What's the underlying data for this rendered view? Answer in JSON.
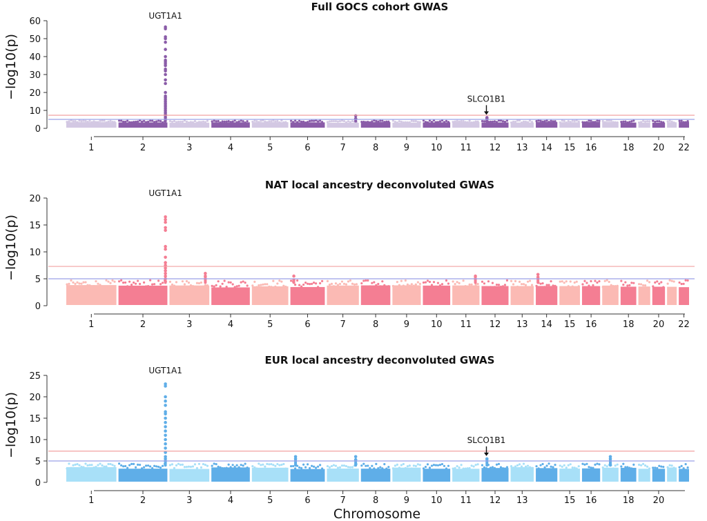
{
  "figure": {
    "xlabel": "Chromosome"
  },
  "chart_data": [
    {
      "type": "scatter",
      "subtype": "manhattan",
      "title": "Full GOCS cohort GWAS",
      "ylabel": "−log10(p)",
      "ylim": [
        0,
        60
      ],
      "yticks": [
        0,
        10,
        20,
        30,
        40,
        50,
        60
      ],
      "thresholds": {
        "suggestive": 5,
        "genome_wide": 7.3
      },
      "colors": {
        "dark": "#8a5ca8",
        "light": "#d3c8e3"
      },
      "chromosome_labels": [
        "1",
        "2",
        "3",
        "4",
        "5",
        "6",
        "7",
        "8",
        "9",
        "10",
        "11",
        "12",
        "13",
        "14",
        "15",
        "16",
        "18",
        "20",
        "22"
      ],
      "baseline_max": 4,
      "peaks": [
        {
          "chromosome": "2",
          "position": 0.96,
          "max": 56.5,
          "values": [
            56.5,
            55.5,
            51,
            50,
            48,
            44,
            40,
            38,
            37,
            36,
            35,
            33,
            32,
            30,
            27,
            25,
            20,
            18,
            17,
            16,
            15,
            14,
            13,
            12,
            11,
            10,
            9,
            8,
            7,
            6,
            5
          ]
        },
        {
          "chromosome": "12",
          "position": 0.2,
          "max": 6,
          "values": [
            6,
            5.5,
            5
          ]
        },
        {
          "chromosome": "7",
          "position": 0.9,
          "max": 7,
          "values": [
            7,
            5.5
          ]
        }
      ],
      "annotations": [
        {
          "label": "UGT1A1",
          "chromosome": "2",
          "position": 0.96,
          "arrow": false
        },
        {
          "label": "SLCO1B1",
          "chromosome": "12",
          "position": 0.18,
          "arrow": true
        }
      ]
    },
    {
      "type": "scatter",
      "subtype": "manhattan",
      "title": "NAT local ancestry deconvoluted GWAS",
      "ylabel": "−log10(p)",
      "ylim": [
        0,
        20
      ],
      "yticks": [
        0,
        5,
        10,
        15,
        20
      ],
      "thresholds": {
        "suggestive": 5,
        "genome_wide": 7.3
      },
      "colors": {
        "dark": "#f47e93",
        "light": "#fbbab4"
      },
      "chromosome_labels": [
        "1",
        "2",
        "3",
        "4",
        "5",
        "6",
        "7",
        "8",
        "9",
        "10",
        "11",
        "12",
        "13",
        "14",
        "15",
        "16",
        "18",
        "20",
        "22"
      ],
      "baseline_max": 4.3,
      "peaks": [
        {
          "chromosome": "2",
          "position": 0.96,
          "max": 16.5,
          "values": [
            16.5,
            16,
            15.5,
            14.5,
            14,
            11,
            10.5,
            9,
            8,
            7.5,
            7,
            6.5,
            6,
            5.5,
            5,
            4.5
          ]
        },
        {
          "chromosome": "3",
          "position": 0.9,
          "max": 6,
          "values": [
            6,
            5.5
          ]
        },
        {
          "chromosome": "14",
          "position": 0.1,
          "max": 5.8,
          "values": [
            5.8,
            5.3
          ]
        },
        {
          "chromosome": "6",
          "position": 0.1,
          "max": 5.5,
          "values": [
            5.5,
            4.8
          ]
        },
        {
          "chromosome": "11",
          "position": 0.85,
          "max": 5.5,
          "values": [
            5.5
          ]
        }
      ],
      "annotations": [
        {
          "label": "UGT1A1",
          "chromosome": "2",
          "position": 0.96,
          "arrow": false
        }
      ]
    },
    {
      "type": "scatter",
      "subtype": "manhattan",
      "title": "EUR local ancestry deconvoluted GWAS",
      "ylabel": "−log10(p)",
      "ylim": [
        0,
        25
      ],
      "yticks": [
        0,
        5,
        10,
        15,
        20,
        25
      ],
      "thresholds": {
        "suggestive": 5,
        "genome_wide": 7.3
      },
      "colors": {
        "dark": "#5faee8",
        "light": "#a8e0f8"
      },
      "chromosome_labels": [
        "1",
        "2",
        "3",
        "4",
        "5",
        "6",
        "7",
        "8",
        "9",
        "10",
        "11",
        "12",
        "13",
        "15",
        "16",
        "18",
        "20"
      ],
      "baseline_max": 4,
      "peaks": [
        {
          "chromosome": "2",
          "position": 0.96,
          "max": 23,
          "values": [
            23,
            22.5,
            20,
            19,
            18,
            16.5,
            16,
            15,
            14,
            13,
            12,
            11,
            10,
            9,
            8,
            7,
            6,
            5.5,
            5
          ]
        },
        {
          "chromosome": "6",
          "position": 0.15,
          "max": 6,
          "values": [
            6,
            5.5
          ]
        },
        {
          "chromosome": "7",
          "position": 0.9,
          "max": 6,
          "values": [
            6,
            5.3
          ]
        },
        {
          "chromosome": "17",
          "position": 0.5,
          "max": 6,
          "values": [
            6,
            5.5
          ]
        },
        {
          "chromosome": "12",
          "position": 0.2,
          "max": 5.5,
          "values": [
            5.5
          ]
        }
      ],
      "annotations": [
        {
          "label": "UGT1A1",
          "chromosome": "2",
          "position": 0.96,
          "arrow": false
        },
        {
          "label": "SLCO1B1",
          "chromosome": "12",
          "position": 0.18,
          "arrow": true
        }
      ]
    }
  ]
}
